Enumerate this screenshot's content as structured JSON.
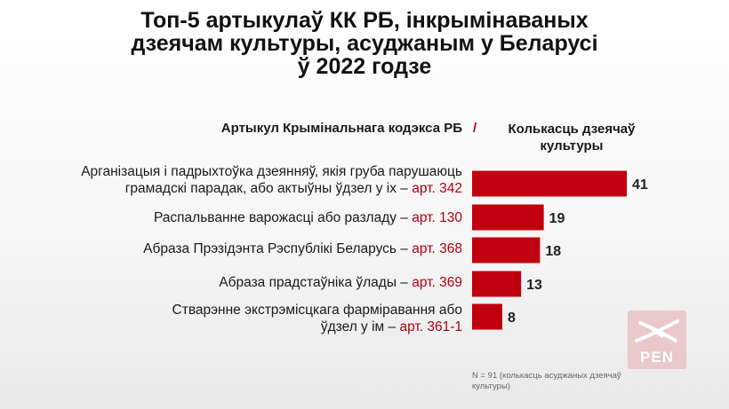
{
  "title_lines": [
    "Топ-5 артыкулаў КК РБ, інкрымінаваных",
    "дзеячам культуры, асуджаным у Беларусі",
    "ў 2022 годзе"
  ],
  "header": {
    "left": "Артыкул Крымінальнага кодэкса РБ",
    "slash": "/",
    "right": "Колькасць дзеячаў культуры"
  },
  "rows": [
    {
      "lines": [
        "Арганізацыя і падрыхтоўка дзеянняў, якія груба парушаюць",
        "грамадскі парадак, або актыўны ўдзел у іх – "
      ],
      "article": "арт. 342",
      "value": 41
    },
    {
      "lines": [
        "Распальванне варожасці або разладу – "
      ],
      "article": "арт. 130",
      "value": 19
    },
    {
      "lines": [
        "Абраза Прэзідэнта Рэспублікі Беларусь – "
      ],
      "article": "арт. 368",
      "value": 18
    },
    {
      "lines": [
        "Абраза прадстаўніка ўлады – "
      ],
      "article": "арт. 369",
      "value": 13
    },
    {
      "lines": [
        "Стварэнне экстрэмісцкага фарміравання або",
        "ўдзел у ім – "
      ],
      "article": "арт. 361-1",
      "value": 8
    }
  ],
  "note": "N = 91  (колькасць асуджаных дзеячаў культуры)",
  "logo": {
    "text": "PEN"
  },
  "colors": {
    "bar": "#c00010",
    "accent": "#b3000f",
    "logo_bg": "#e9c9c9"
  },
  "chart_data": {
    "type": "bar",
    "orientation": "horizontal",
    "title": "Топ-5 артыкулаў КК РБ, інкрымінаваных дзеячам культуры, асуджаным у Беларусі ў 2022 годзе",
    "xlabel": "Колькасць дзеячаў культуры",
    "ylabel": "Артыкул Крымінальнага кодэкса РБ",
    "categories": [
      "арт. 342",
      "арт. 130",
      "арт. 368",
      "арт. 369",
      "арт. 361-1"
    ],
    "values": [
      41,
      19,
      18,
      13,
      8
    ],
    "xlim": [
      0,
      41
    ],
    "grid": false,
    "legend": "none"
  }
}
